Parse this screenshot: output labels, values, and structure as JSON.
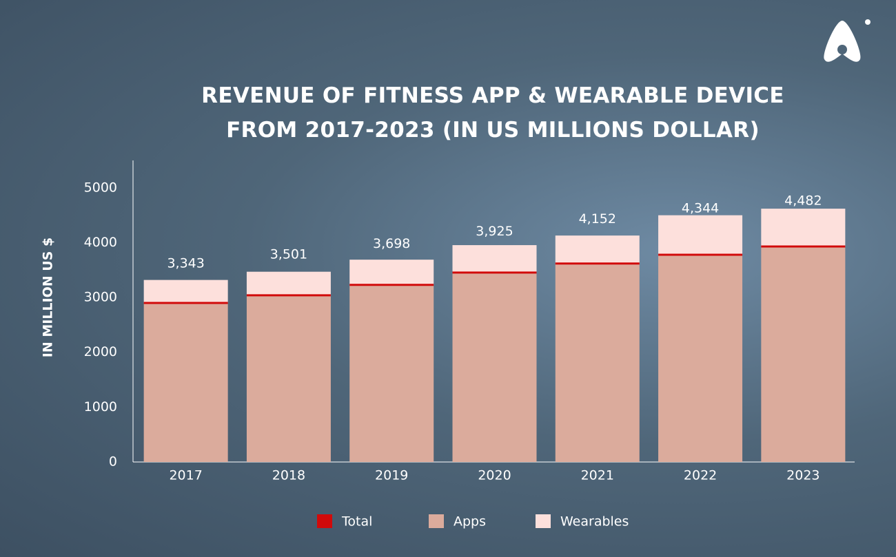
{
  "chart_data": {
    "type": "stacked_bar",
    "title": "REVENUE OF FITNESS APP & WEARABLE DEVICE FROM 2017-2023 (IN US MILLIONS DOLLAR)",
    "y_label": "IN MILLION US $",
    "categories": [
      "2017",
      "2018",
      "2019",
      "2020",
      "2021",
      "2022",
      "2023"
    ],
    "series": [
      {
        "name": "Total",
        "color": "#d10a0a",
        "values": [
          3343,
          3501,
          3698,
          3925,
          4152,
          4344,
          4482
        ],
        "value_labels": [
          "3,343",
          "3,501",
          "3,698",
          "3,925",
          "4,152",
          "4,344",
          "4,482"
        ]
      },
      {
        "name": "Apps",
        "color": "#dbab9c",
        "values": [
          2900,
          3040,
          3230,
          3455,
          3620,
          3780,
          3930
        ]
      },
      {
        "name": "Wearables",
        "color": "#fde0dc",
        "values": [
          420,
          430,
          460,
          500,
          510,
          720,
          690
        ]
      }
    ],
    "ylim": [
      0,
      5500
    ],
    "yticks": [
      0,
      1000,
      2000,
      3000,
      4000,
      5000
    ]
  }
}
